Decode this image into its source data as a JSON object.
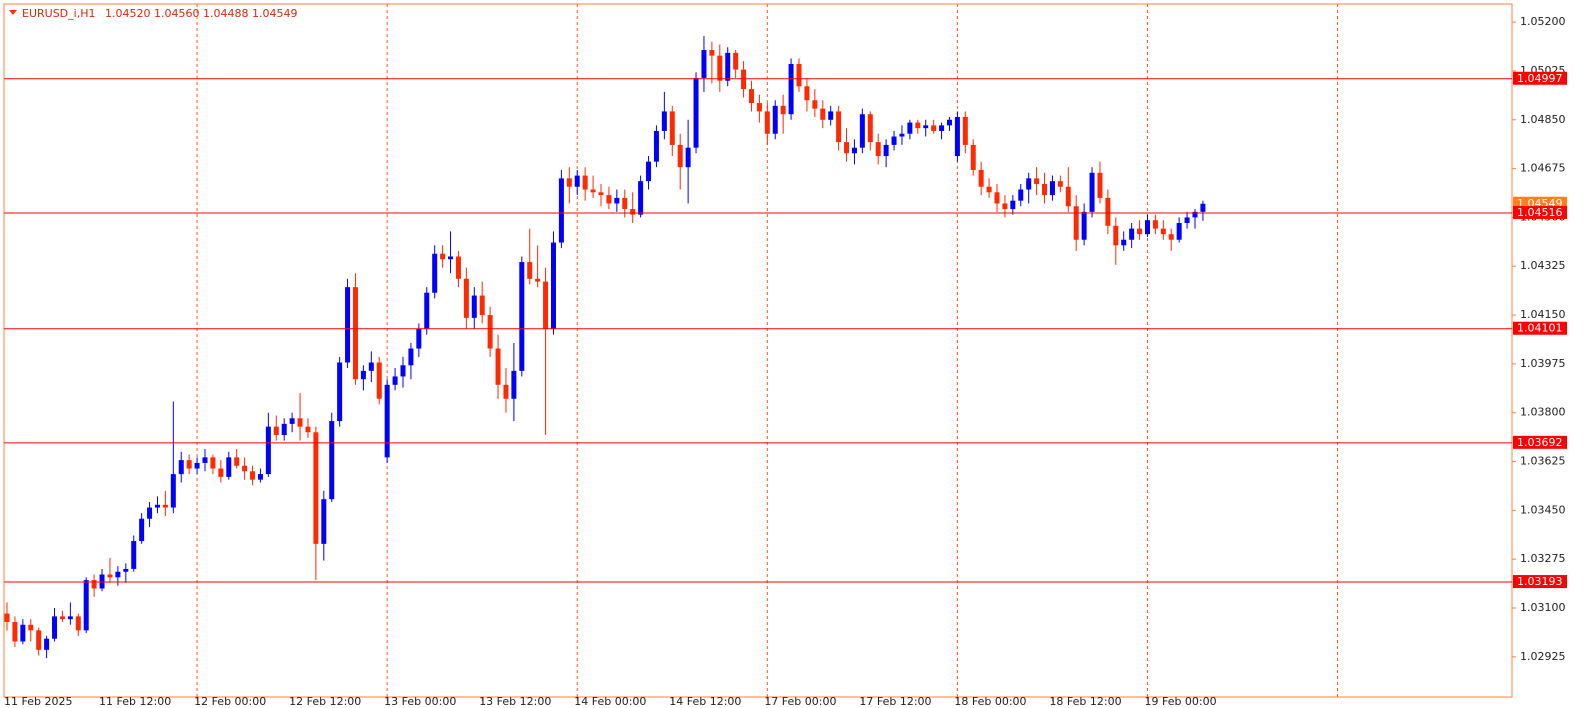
{
  "chart_data": {
    "type": "candlestick",
    "title": "EURUSD_i,H1",
    "info": [
      "1.04520",
      "1.04560",
      "1.04488",
      "1.04549"
    ],
    "categories": [
      "11 Feb 2025",
      null,
      null,
      null,
      null,
      null,
      null,
      null,
      null,
      null,
      null,
      null,
      "11 Feb 12:00",
      null,
      null,
      null,
      null,
      null,
      null,
      null,
      null,
      null,
      null,
      null,
      "12 Feb 00:00",
      null,
      null,
      null,
      null,
      null,
      null,
      null,
      null,
      null,
      null,
      null,
      "12 Feb 12:00",
      null,
      null,
      null,
      null,
      null,
      null,
      null,
      null,
      null,
      null,
      null,
      "13 Feb 00:00",
      null,
      null,
      null,
      null,
      null,
      null,
      null,
      null,
      null,
      null,
      null,
      "13 Feb 12:00",
      null,
      null,
      null,
      null,
      null,
      null,
      null,
      null,
      null,
      null,
      null,
      "14 Feb 00:00",
      null,
      null,
      null,
      null,
      null,
      null,
      null,
      null,
      null,
      null,
      null,
      "14 Feb 12:00",
      null,
      null,
      null,
      null,
      null,
      null,
      null,
      null,
      null,
      null,
      null,
      "17 Feb 00:00",
      null,
      null,
      null,
      null,
      null,
      null,
      null,
      null,
      null,
      null,
      null,
      "17 Feb 12:00",
      null,
      null,
      null,
      null,
      null,
      null,
      null,
      null,
      null,
      null,
      null,
      "18 Feb 00:00",
      null,
      null,
      null,
      null,
      null,
      null,
      null,
      null,
      null,
      null,
      null,
      "18 Feb 12:00",
      null,
      null,
      null,
      null,
      null,
      null,
      null,
      null,
      null,
      null,
      null,
      "19 Feb 00:00",
      null,
      null,
      null,
      null,
      null,
      null,
      null
    ],
    "ohlc": [
      [
        1.0308,
        1.0312,
        1.0302,
        1.0305
      ],
      [
        1.0305,
        1.0307,
        1.0296,
        1.0298
      ],
      [
        1.0298,
        1.0306,
        1.0297,
        1.0304
      ],
      [
        1.0304,
        1.0306,
        1.0298,
        1.0302
      ],
      [
        1.0302,
        1.0303,
        1.0293,
        1.0295
      ],
      [
        1.0295,
        1.03,
        1.0292,
        1.0299
      ],
      [
        1.0299,
        1.031,
        1.0298,
        1.0307
      ],
      [
        1.0307,
        1.0309,
        1.0305,
        1.0306
      ],
      [
        1.0306,
        1.0312,
        1.0304,
        1.0307
      ],
      [
        1.0307,
        1.0308,
        1.03,
        1.0302
      ],
      [
        1.0302,
        1.0321,
        1.0301,
        1.032
      ],
      [
        1.032,
        1.0322,
        1.0314,
        1.0317
      ],
      [
        1.0317,
        1.0324,
        1.0316,
        1.0322
      ],
      [
        1.0322,
        1.0328,
        1.0319,
        1.0321
      ],
      [
        1.0321,
        1.0325,
        1.0318,
        1.0323
      ],
      [
        1.0323,
        1.0326,
        1.0319,
        1.0324
      ],
      [
        1.0324,
        1.0336,
        1.0323,
        1.0334
      ],
      [
        1.0334,
        1.0344,
        1.0333,
        1.0342
      ],
      [
        1.0342,
        1.0348,
        1.0339,
        1.0346
      ],
      [
        1.0346,
        1.035,
        1.0344,
        1.0347
      ],
      [
        1.0347,
        1.0352,
        1.0343,
        1.0346
      ],
      [
        1.0346,
        1.0384,
        1.0344,
        1.0358
      ],
      [
        1.0358,
        1.0366,
        1.0355,
        1.0363
      ],
      [
        1.0363,
        1.0365,
        1.0358,
        1.036
      ],
      [
        1.036,
        1.0364,
        1.0358,
        1.0362
      ],
      [
        1.0362,
        1.0367,
        1.0359,
        1.0364
      ],
      [
        1.0364,
        1.0365,
        1.0358,
        1.036
      ],
      [
        1.036,
        1.0363,
        1.0355,
        1.0357
      ],
      [
        1.0357,
        1.0366,
        1.0356,
        1.0364
      ],
      [
        1.0364,
        1.0367,
        1.036,
        1.0361
      ],
      [
        1.0361,
        1.0364,
        1.0356,
        1.0359
      ],
      [
        1.0359,
        1.0361,
        1.0354,
        1.0356
      ],
      [
        1.0356,
        1.036,
        1.0355,
        1.0358
      ],
      [
        1.0358,
        1.038,
        1.0357,
        1.0375
      ],
      [
        1.0375,
        1.0379,
        1.037,
        1.0372
      ],
      [
        1.0372,
        1.0378,
        1.037,
        1.0376
      ],
      [
        1.0376,
        1.038,
        1.0373,
        1.0378
      ],
      [
        1.0378,
        1.0387,
        1.037,
        1.0375
      ],
      [
        1.0375,
        1.0378,
        1.0371,
        1.0373
      ],
      [
        1.0373,
        1.0375,
        1.032,
        1.0333
      ],
      [
        1.0333,
        1.0352,
        1.0327,
        1.0349
      ],
      [
        1.0349,
        1.038,
        1.0348,
        1.0377
      ],
      [
        1.0377,
        1.04,
        1.0375,
        1.0398
      ],
      [
        1.0398,
        1.0428,
        1.0396,
        1.0425
      ],
      [
        1.0425,
        1.043,
        1.039,
        1.0392
      ],
      [
        1.0392,
        1.0397,
        1.0388,
        1.0395
      ],
      [
        1.0395,
        1.0402,
        1.0391,
        1.0398
      ],
      [
        1.0398,
        1.04,
        1.0383,
        1.0385
      ],
      [
        1.0364,
        1.0392,
        1.0362,
        1.039
      ],
      [
        1.039,
        1.0396,
        1.0388,
        1.0393
      ],
      [
        1.0393,
        1.04,
        1.0389,
        1.0397
      ],
      [
        1.0397,
        1.0405,
        1.0392,
        1.0403
      ],
      [
        1.0403,
        1.0412,
        1.04,
        1.041
      ],
      [
        1.041,
        1.0425,
        1.0408,
        1.0423
      ],
      [
        1.0423,
        1.044,
        1.0421,
        1.0437
      ],
      [
        1.0437,
        1.044,
        1.0432,
        1.0435
      ],
      [
        1.0435,
        1.0445,
        1.043,
        1.0436
      ],
      [
        1.0436,
        1.0438,
        1.0425,
        1.0428
      ],
      [
        1.0428,
        1.0432,
        1.041,
        1.0414
      ],
      [
        1.0414,
        1.0425,
        1.041,
        1.0422
      ],
      [
        1.0422,
        1.0427,
        1.0412,
        1.0415
      ],
      [
        1.0415,
        1.0418,
        1.04,
        1.0403
      ],
      [
        1.0403,
        1.0408,
        1.0385,
        1.039
      ],
      [
        1.039,
        1.0396,
        1.038,
        1.0385
      ],
      [
        1.0385,
        1.0405,
        1.0377,
        1.0395
      ],
      [
        1.0395,
        1.0436,
        1.0393,
        1.0434
      ],
      [
        1.0434,
        1.0446,
        1.0426,
        1.0428
      ],
      [
        1.0428,
        1.044,
        1.0425,
        1.0427
      ],
      [
        1.0427,
        1.0432,
        1.0372,
        1.041
      ],
      [
        1.041,
        1.0445,
        1.0408,
        1.0441
      ],
      [
        1.0441,
        1.0467,
        1.0439,
        1.0464
      ],
      [
        1.0464,
        1.0468,
        1.0455,
        1.0461
      ],
      [
        1.0461,
        1.0467,
        1.0458,
        1.0465
      ],
      [
        1.0465,
        1.0468,
        1.0456,
        1.046
      ],
      [
        1.046,
        1.0465,
        1.0457,
        1.0459
      ],
      [
        1.0459,
        1.0462,
        1.0454,
        1.0458
      ],
      [
        1.0458,
        1.0461,
        1.0453,
        1.0455
      ],
      [
        1.0455,
        1.046,
        1.0452,
        1.0457
      ],
      [
        1.0457,
        1.046,
        1.045,
        1.0453
      ],
      [
        1.0453,
        1.0459,
        1.0448,
        1.0451
      ],
      [
        1.0451,
        1.0465,
        1.045,
        1.0463
      ],
      [
        1.0463,
        1.0472,
        1.046,
        1.047
      ],
      [
        1.047,
        1.0483,
        1.0468,
        1.0481
      ],
      [
        1.0481,
        1.0495,
        1.0478,
        1.0488
      ],
      [
        1.0488,
        1.049,
        1.0472,
        1.0476
      ],
      [
        1.0476,
        1.048,
        1.046,
        1.0468
      ],
      [
        1.0468,
        1.0485,
        1.0455,
        1.0475
      ],
      [
        1.0475,
        1.0502,
        1.0473,
        1.05
      ],
      [
        1.05,
        1.0515,
        1.0495,
        1.051
      ],
      [
        1.051,
        1.0513,
        1.0498,
        1.0508
      ],
      [
        1.0508,
        1.0512,
        1.0495,
        1.0499
      ],
      [
        1.0499,
        1.0511,
        1.0497,
        1.0509
      ],
      [
        1.0509,
        1.051,
        1.05,
        1.0503
      ],
      [
        1.0503,
        1.0506,
        1.0493,
        1.0496
      ],
      [
        1.0496,
        1.0499,
        1.0488,
        1.0491
      ],
      [
        1.0491,
        1.0494,
        1.0484,
        1.0488
      ],
      [
        1.0488,
        1.0491,
        1.0476,
        1.048
      ],
      [
        1.048,
        1.0492,
        1.0478,
        1.049
      ],
      [
        1.049,
        1.0494,
        1.048,
        1.0487
      ],
      [
        1.0487,
        1.0507,
        1.0485,
        1.0505
      ],
      [
        1.0505,
        1.0507,
        1.0495,
        1.0497
      ],
      [
        1.0497,
        1.05,
        1.0488,
        1.0492
      ],
      [
        1.0492,
        1.0496,
        1.0486,
        1.0489
      ],
      [
        1.0489,
        1.0492,
        1.0482,
        1.0485
      ],
      [
        1.0485,
        1.049,
        1.0483,
        1.0488
      ],
      [
        1.0488,
        1.049,
        1.0474,
        1.0477
      ],
      [
        1.0477,
        1.0482,
        1.047,
        1.0473
      ],
      [
        1.0473,
        1.0478,
        1.0469,
        1.0475
      ],
      [
        1.0475,
        1.0489,
        1.0473,
        1.0487
      ],
      [
        1.0487,
        1.0488,
        1.0474,
        1.0477
      ],
      [
        1.0477,
        1.048,
        1.0469,
        1.0472
      ],
      [
        1.0472,
        1.0478,
        1.0468,
        1.0476
      ],
      [
        1.0476,
        1.0481,
        1.0474,
        1.0479
      ],
      [
        1.0479,
        1.0483,
        1.0476,
        1.048
      ],
      [
        1.048,
        1.0485,
        1.0478,
        1.0484
      ],
      [
        1.0484,
        1.0485,
        1.048,
        1.0482
      ],
      [
        1.0482,
        1.0485,
        1.0479,
        1.0483
      ],
      [
        1.0483,
        1.0485,
        1.048,
        1.0481
      ],
      [
        1.0481,
        1.0484,
        1.0478,
        1.0483
      ],
      [
        1.0483,
        1.0486,
        1.0481,
        1.0485
      ],
      [
        1.0472,
        1.0488,
        1.047,
        1.0486
      ],
      [
        1.0486,
        1.0488,
        1.0473,
        1.0476
      ],
      [
        1.0476,
        1.0478,
        1.0465,
        1.0467
      ],
      [
        1.0467,
        1.047,
        1.0458,
        1.0461
      ],
      [
        1.0461,
        1.0464,
        1.0457,
        1.0459
      ],
      [
        1.0459,
        1.0462,
        1.0452,
        1.0455
      ],
      [
        1.0455,
        1.0458,
        1.045,
        1.0453
      ],
      [
        1.0453,
        1.0458,
        1.0451,
        1.0456
      ],
      [
        1.0456,
        1.0462,
        1.0454,
        1.046
      ],
      [
        1.046,
        1.0466,
        1.0455,
        1.0464
      ],
      [
        1.0464,
        1.0468,
        1.0458,
        1.0462
      ],
      [
        1.0462,
        1.0466,
        1.0455,
        1.0458
      ],
      [
        1.0458,
        1.0465,
        1.0456,
        1.0463
      ],
      [
        1.0463,
        1.0465,
        1.0459,
        1.0461
      ],
      [
        1.0461,
        1.0468,
        1.0452,
        1.0454
      ],
      [
        1.0454,
        1.0458,
        1.0438,
        1.0442
      ],
      [
        1.0442,
        1.0455,
        1.044,
        1.0452
      ],
      [
        1.0452,
        1.0468,
        1.045,
        1.0466
      ],
      [
        1.0466,
        1.047,
        1.0455,
        1.0457
      ],
      [
        1.0457,
        1.046,
        1.0444,
        1.0447
      ],
      [
        1.0447,
        1.045,
        1.0433,
        1.044
      ],
      [
        1.044,
        1.0445,
        1.0438,
        1.0442
      ],
      [
        1.0442,
        1.0448,
        1.0439,
        1.0446
      ],
      [
        1.0446,
        1.0449,
        1.0442,
        1.0444
      ],
      [
        1.0444,
        1.0451,
        1.0443,
        1.0449
      ],
      [
        1.0449,
        1.0451,
        1.0444,
        1.0446
      ],
      [
        1.0446,
        1.0449,
        1.0442,
        1.0444
      ],
      [
        1.0444,
        1.0446,
        1.0438,
        1.0442
      ],
      [
        1.0442,
        1.045,
        1.0441,
        1.0448
      ],
      [
        1.0448,
        1.0452,
        1.0446,
        1.045
      ],
      [
        1.045,
        1.0453,
        1.0446,
        1.0452
      ],
      [
        1.0452,
        1.0456,
        1.04488,
        1.04549
      ]
    ],
    "up_color": "#0000ff",
    "down_color": "#ff2a00",
    "ylim": [
      1.02781,
      1.05265
    ],
    "yticks": [
      {
        "value": 1.052,
        "label": "1.05200"
      },
      {
        "value": 1.05025,
        "label": "1.05025"
      },
      {
        "value": 1.0485,
        "label": "1.04850"
      },
      {
        "value": 1.04675,
        "label": "1.04675"
      },
      {
        "value": 1.045,
        "label": "1.04500"
      },
      {
        "value": 1.04325,
        "label": "1.04325"
      },
      {
        "value": 1.0415,
        "label": "1.04150"
      },
      {
        "value": 1.03975,
        "label": "1.03975"
      },
      {
        "value": 1.038,
        "label": "1.03800"
      },
      {
        "value": 1.03625,
        "label": "1.03625"
      },
      {
        "value": 1.0345,
        "label": "1.03450"
      },
      {
        "value": 1.03275,
        "label": "1.03275"
      },
      {
        "value": 1.031,
        "label": "1.03100"
      },
      {
        "value": 1.02925,
        "label": "1.02925"
      }
    ],
    "levels": [
      1.04997,
      1.04516,
      1.04101,
      1.03692,
      1.03193
    ],
    "level_color": "#ff0000",
    "grid": true
  }
}
